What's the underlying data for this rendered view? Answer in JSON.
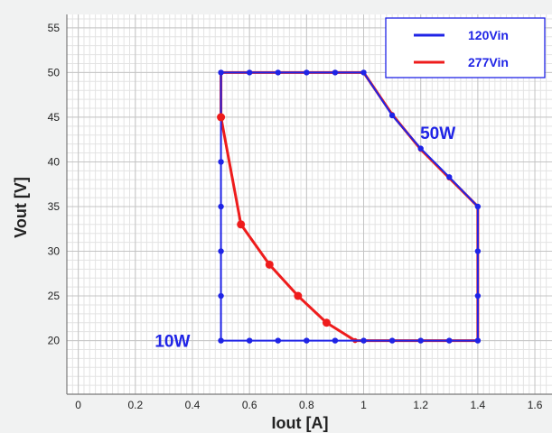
{
  "chart_data": {
    "type": "line",
    "xlabel": "Iout [A]",
    "ylabel": "Vout [V]",
    "xlim": [
      -0.04,
      1.66
    ],
    "ylim": [
      14,
      56.5
    ],
    "grid": true,
    "legend_position": "top-right",
    "x_ticks": [
      0,
      0.2,
      0.4,
      0.6,
      0.8,
      1,
      1.2,
      1.4,
      1.6
    ],
    "x_tick_labels": [
      "0",
      "0.2",
      "0.4",
      "0.6",
      "0.8",
      "1",
      "1.2",
      "1.4",
      "1.6"
    ],
    "y_ticks": [
      20,
      25,
      30,
      35,
      40,
      45,
      50,
      55
    ],
    "y_tick_labels": [
      "20",
      "25",
      "30",
      "35",
      "40",
      "45",
      "50",
      "55"
    ],
    "series": [
      {
        "name": "120Vin",
        "color": "#1f24e6",
        "points": [
          [
            0.5,
            20
          ],
          [
            0.5,
            25
          ],
          [
            0.5,
            30
          ],
          [
            0.5,
            35
          ],
          [
            0.5,
            40
          ],
          [
            0.5,
            45
          ],
          [
            0.5,
            50
          ],
          [
            0.6,
            50
          ],
          [
            0.7,
            50
          ],
          [
            0.8,
            50
          ],
          [
            0.9,
            50
          ],
          [
            1.0,
            50
          ],
          [
            1.1,
            45.2
          ],
          [
            1.2,
            41.5
          ],
          [
            1.3,
            38.3
          ],
          [
            1.4,
            35
          ],
          [
            1.4,
            30
          ],
          [
            1.4,
            25
          ],
          [
            1.4,
            20
          ],
          [
            1.3,
            20
          ],
          [
            1.2,
            20
          ],
          [
            1.1,
            20
          ],
          [
            1.0,
            20
          ],
          [
            0.9,
            20
          ],
          [
            0.8,
            20
          ],
          [
            0.7,
            20
          ],
          [
            0.6,
            20
          ],
          [
            0.5,
            20
          ]
        ]
      },
      {
        "name": "277Vin",
        "color": "#ee1c1c",
        "points": [
          [
            0.5,
            50
          ],
          [
            1.0,
            50
          ],
          [
            1.1,
            45.3
          ],
          [
            1.2,
            41.4
          ],
          [
            1.3,
            38.2
          ],
          [
            1.4,
            35
          ],
          [
            1.4,
            20
          ],
          [
            0.97,
            20
          ],
          [
            0.87,
            22
          ],
          [
            0.77,
            25
          ],
          [
            0.67,
            28.5
          ],
          [
            0.57,
            33
          ],
          [
            0.5,
            45
          ],
          [
            0.5,
            50
          ]
        ],
        "markers": [
          [
            0.5,
            45
          ],
          [
            0.57,
            33
          ],
          [
            0.67,
            28.5
          ],
          [
            0.77,
            25
          ],
          [
            0.87,
            22
          ]
        ]
      }
    ],
    "annotations": [
      {
        "text": "10W",
        "x": 0.33,
        "y": 20,
        "color": "#1f24e6"
      },
      {
        "text": "50W",
        "x": 1.26,
        "y": 43.3,
        "color": "#1f24e6"
      }
    ]
  }
}
